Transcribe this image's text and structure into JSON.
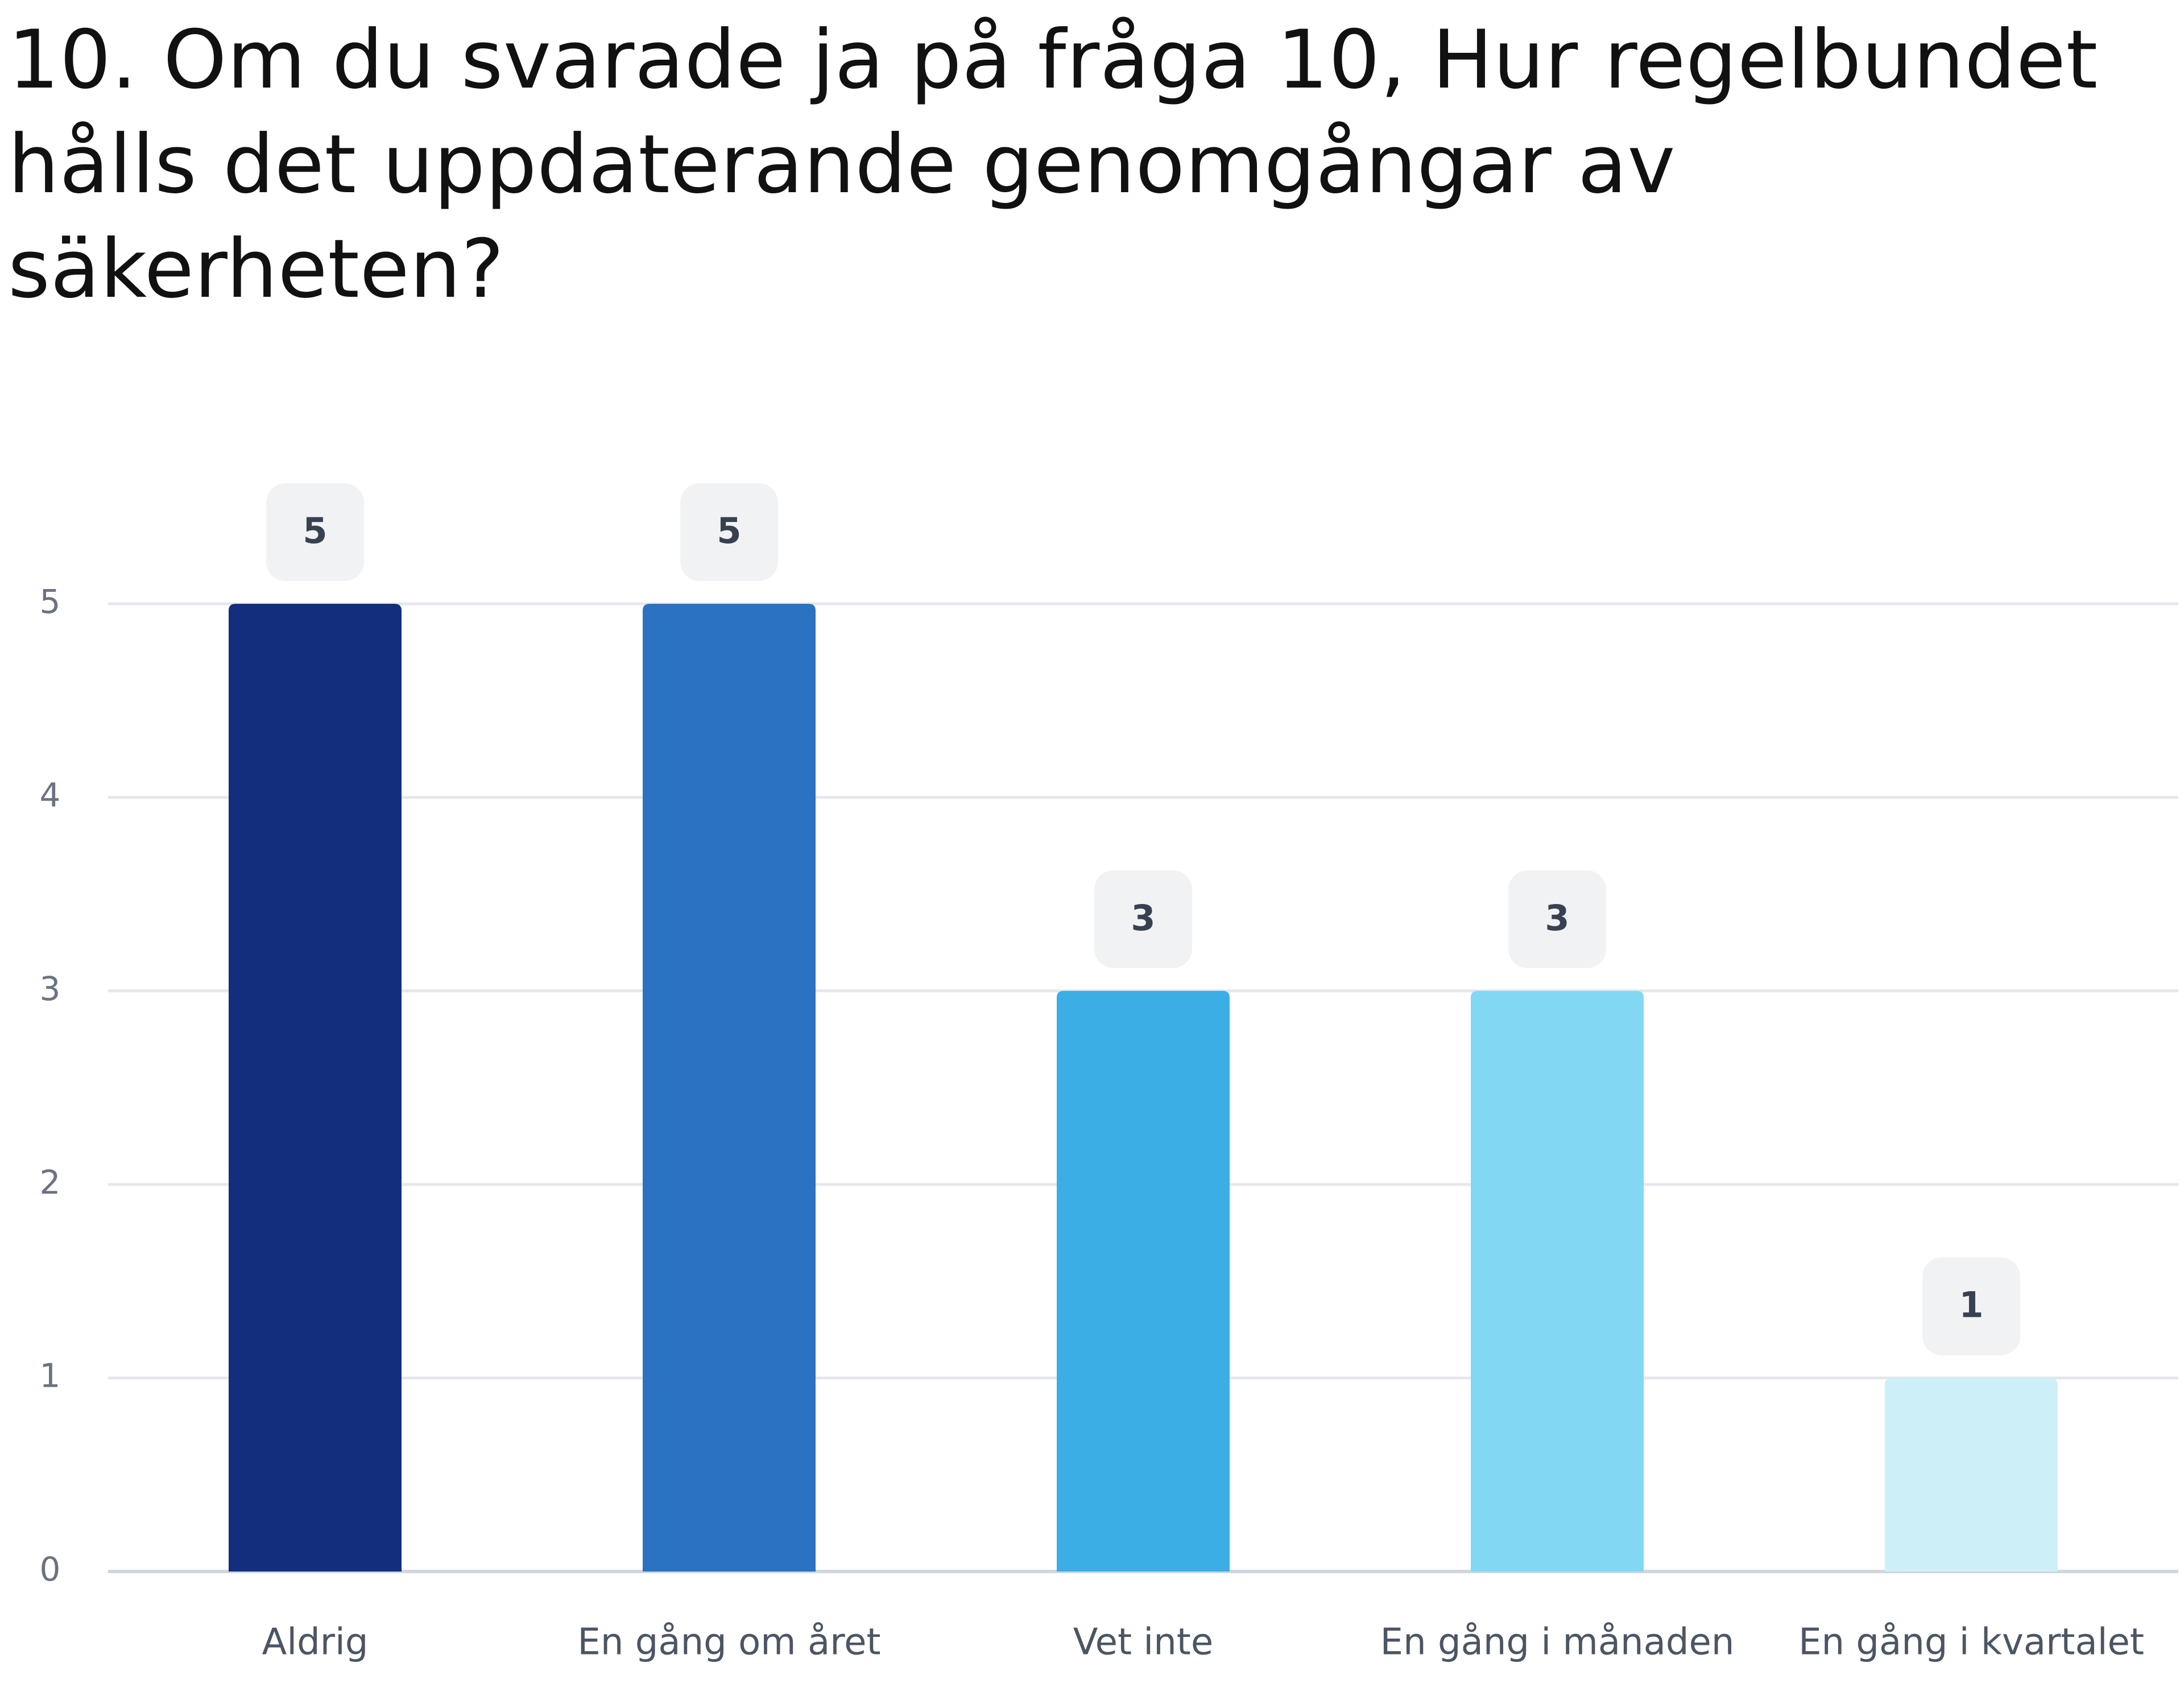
{
  "chart_data": {
    "type": "bar",
    "title": "10. Om du svarade ja på fråga 10, Hur regelbundet hålls det uppdaterande genomgångar av säkerheten?",
    "categories": [
      "Aldrig",
      "En gång om året",
      "Vet inte",
      "En gång i månaden",
      "En gång i kvartalet"
    ],
    "values": [
      5,
      5,
      3,
      3,
      1
    ],
    "colors": [
      "#142e7e",
      "#2b73c2",
      "#3aaee5",
      "#82d8f2",
      "#cdf0f8"
    ],
    "xlabel": "",
    "ylabel": "",
    "ylim": [
      0,
      5
    ],
    "yticks": [
      "0",
      "1",
      "2",
      "3",
      "4",
      "5"
    ],
    "grid": true,
    "legend": "none"
  }
}
